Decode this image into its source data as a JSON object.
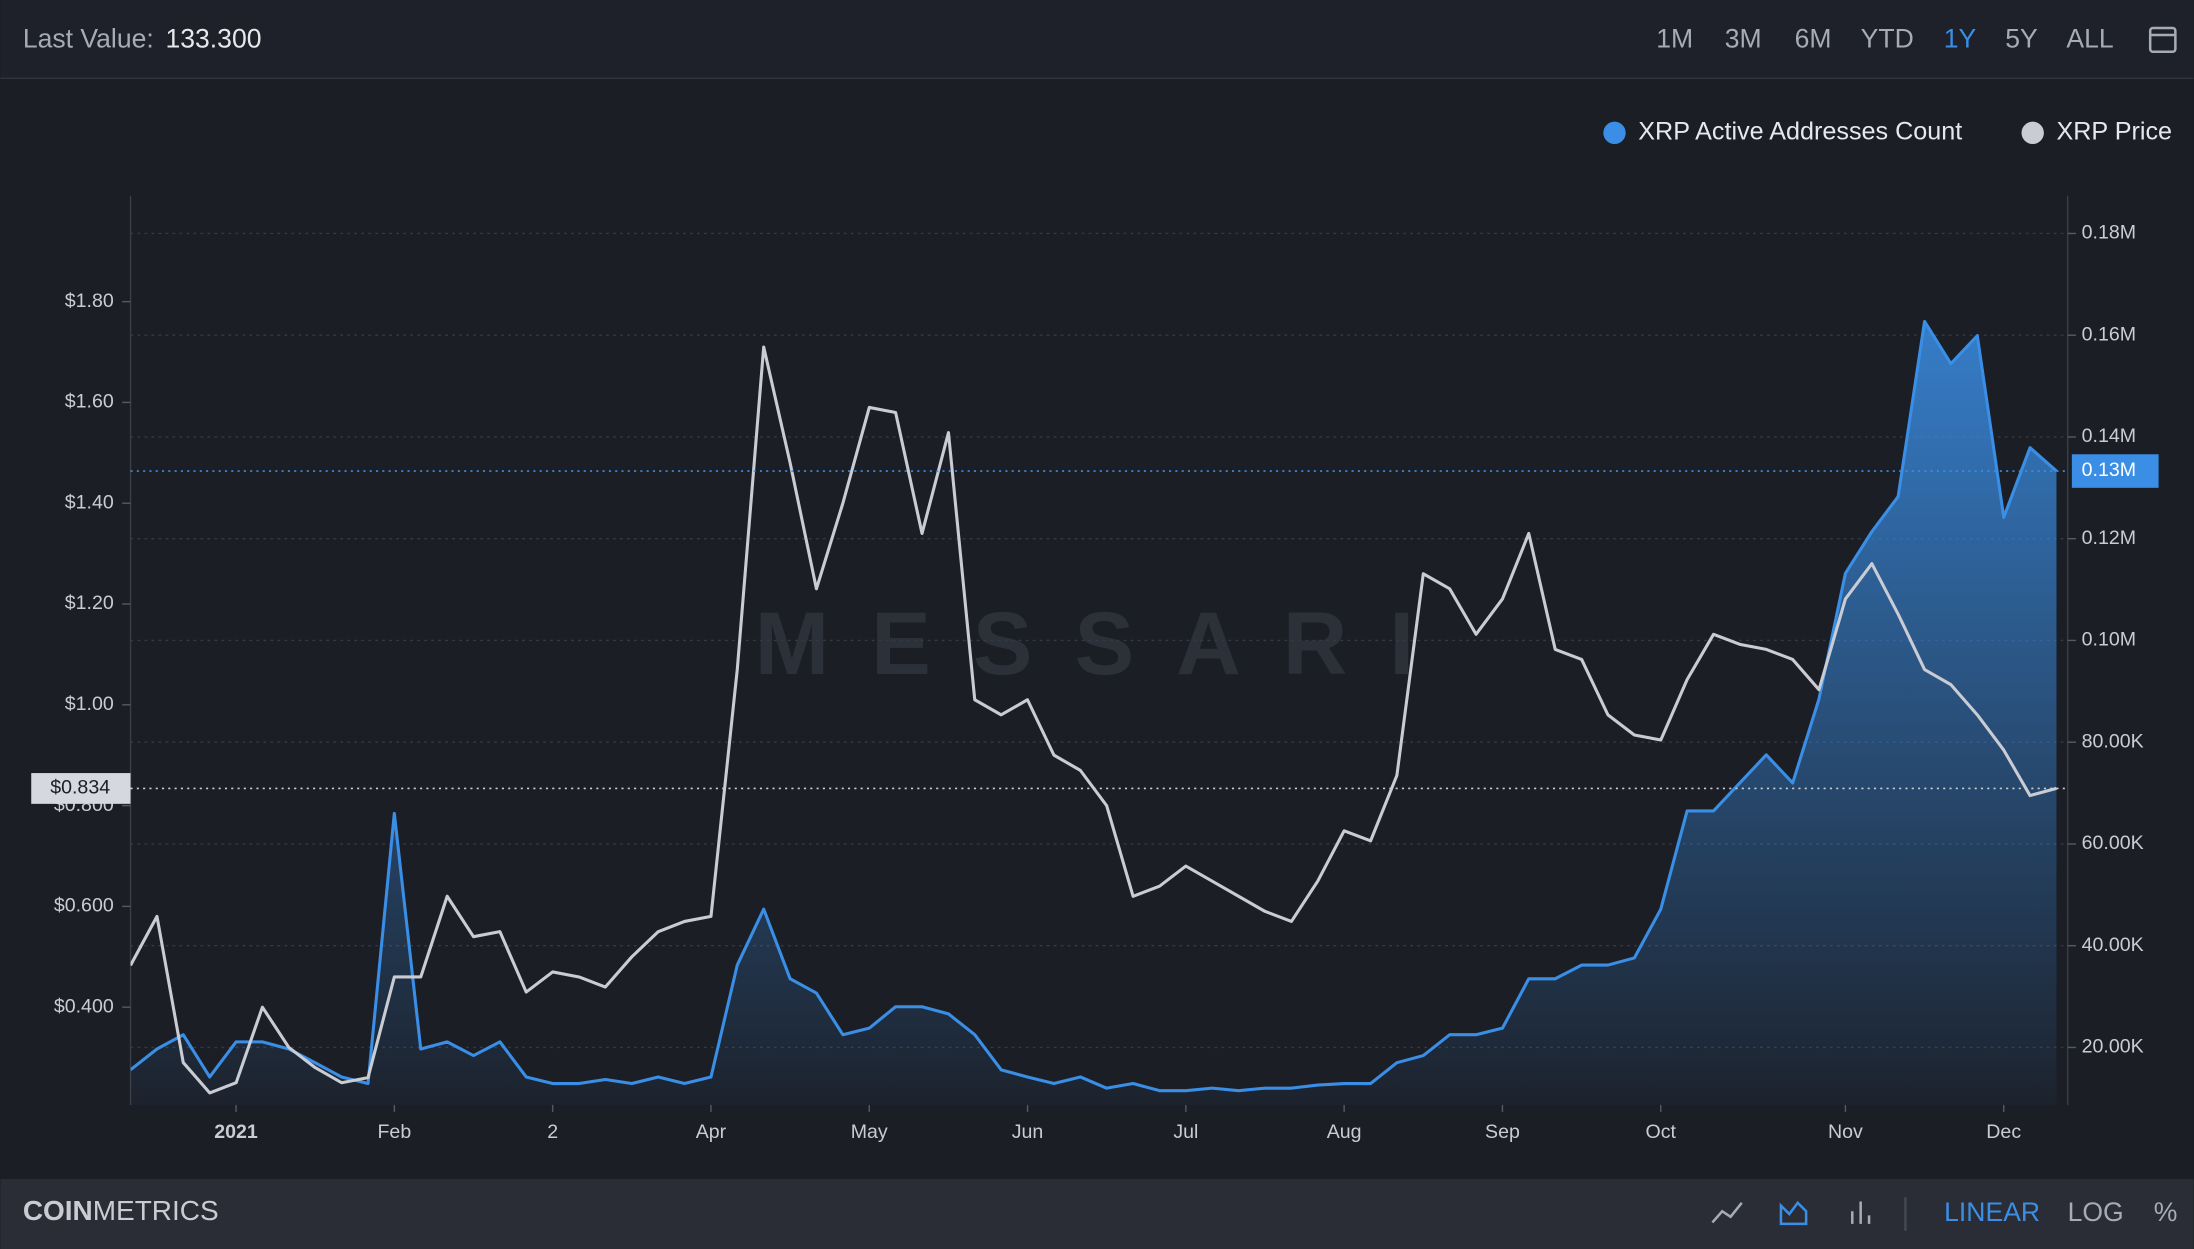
{
  "toolbar": {
    "last_value_label": "Last Value:",
    "last_value": "133.300",
    "ranges": [
      "1M",
      "3M",
      "6M",
      "YTD",
      "1Y",
      "5Y",
      "ALL"
    ],
    "active_range": 4
  },
  "footer": {
    "brand_bold": "COIN",
    "brand_rest": "METRICS",
    "scales": [
      "LINEAR",
      "LOG",
      "%"
    ],
    "active_scale": 0
  },
  "chart_data": {
    "type": "line",
    "watermark": "MESSARI",
    "legend": "top-right",
    "grid": true,
    "categories": [
      null,
      null,
      null,
      null,
      "2021",
      null,
      null,
      null,
      null,
      null,
      "Feb",
      null,
      null,
      null,
      null,
      null,
      "2",
      null,
      null,
      null,
      null,
      null,
      "Apr",
      null,
      null,
      null,
      null,
      null,
      "May",
      null,
      null,
      null,
      null,
      null,
      "Jun",
      null,
      null,
      null,
      null,
      null,
      "Jul",
      null,
      null,
      null,
      null,
      null,
      "Aug",
      null,
      null,
      null,
      null,
      null,
      "Sep",
      null,
      null,
      null,
      null,
      null,
      "Oct",
      null,
      null,
      null,
      null,
      null,
      null,
      "Nov",
      null,
      null,
      null,
      null,
      null,
      "Dec",
      null,
      null
    ],
    "series": [
      {
        "name": "XRP Active Addresses Count",
        "color": "#3a8ee6",
        "axis": "y2",
        "area": true,
        "values": [
          15600,
          19700,
          22500,
          14200,
          21100,
          21100,
          19700,
          17000,
          14200,
          12900,
          66000,
          19700,
          21100,
          18400,
          21100,
          14200,
          12900,
          12900,
          13700,
          12900,
          14200,
          12900,
          14200,
          36200,
          47200,
          33500,
          30700,
          22500,
          23800,
          28000,
          28000,
          26600,
          22500,
          15600,
          14200,
          12900,
          14200,
          12000,
          12900,
          11500,
          11500,
          12000,
          11500,
          12000,
          12000,
          12600,
          12900,
          12900,
          17000,
          18400,
          22500,
          22500,
          23800,
          33500,
          33500,
          36200,
          36200,
          37600,
          47200,
          66500,
          66500,
          72000,
          77500,
          72000,
          88500,
          113200,
          121400,
          128300,
          162700,
          154400,
          159900,
          124200,
          137900,
          133300
        ]
      },
      {
        "name": "XRP Price",
        "color": "#c9ccd3",
        "values": [
          0.483,
          0.58,
          0.29,
          0.23,
          0.25,
          0.4,
          0.32,
          0.28,
          0.25,
          0.26,
          0.46,
          0.46,
          0.62,
          0.54,
          0.55,
          0.43,
          0.47,
          0.46,
          0.44,
          0.5,
          0.55,
          0.57,
          0.58,
          1.07,
          1.71,
          1.48,
          1.23,
          1.4,
          1.59,
          1.58,
          1.34,
          1.54,
          1.01,
          0.98,
          1.01,
          0.9,
          0.87,
          0.8,
          0.62,
          0.64,
          0.68,
          0.65,
          0.62,
          0.59,
          0.57,
          0.65,
          0.75,
          0.73,
          0.86,
          1.26,
          1.23,
          1.14,
          1.21,
          1.34,
          1.11,
          1.09,
          0.98,
          0.94,
          0.93,
          1.05,
          1.14,
          1.12,
          1.11,
          1.09,
          1.03,
          1.21,
          1.28,
          1.18,
          1.07,
          1.04,
          0.98,
          0.91,
          0.82,
          0.834
        ]
      }
    ],
    "last_labels": [
      "0.13M",
      "$0.834"
    ],
    "ylim": [
      0.206,
      2.01
    ],
    "yticks": [
      {
        "value": 0.4,
        "label": "$0.400"
      },
      {
        "value": 0.6,
        "label": "$0.600"
      },
      {
        "value": 0.8,
        "label": "$0.800"
      },
      {
        "value": 1.0,
        "label": "$1.00"
      },
      {
        "value": 1.2,
        "label": "$1.20"
      },
      {
        "value": 1.4,
        "label": "$1.40"
      },
      {
        "value": 1.6,
        "label": "$1.60"
      },
      {
        "value": 1.8,
        "label": "$1.80"
      }
    ],
    "y2lim": [
      8700,
      187400
    ],
    "y2ticks": [
      {
        "value": 20000,
        "label": "20.00K"
      },
      {
        "value": 40000,
        "label": "40.00K"
      },
      {
        "value": 60000,
        "label": "60.00K"
      },
      {
        "value": 80000,
        "label": "80.00K"
      },
      {
        "value": 100000,
        "label": "0.10M"
      },
      {
        "value": 120000,
        "label": "0.12M"
      },
      {
        "value": 140000,
        "label": "0.14M"
      },
      {
        "value": 160000,
        "label": "0.16M"
      },
      {
        "value": 180000,
        "label": "0.18M"
      }
    ]
  }
}
